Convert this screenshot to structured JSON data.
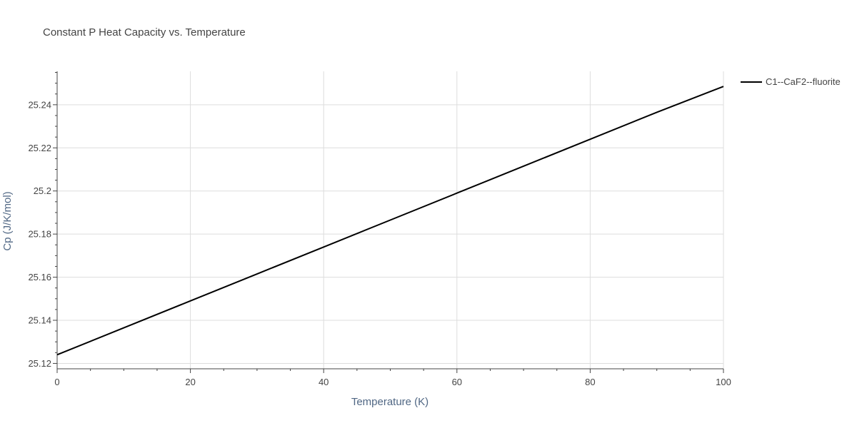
{
  "chart_data": {
    "type": "line",
    "title": "Constant P Heat Capacity vs. Temperature",
    "xlabel": "Temperature (K)",
    "ylabel": "Cp (J/K/mol)",
    "xlim": [
      0,
      100
    ],
    "ylim": [
      25.1175,
      25.2555
    ],
    "x_ticks": [
      0,
      20,
      40,
      60,
      80,
      100
    ],
    "x_tick_labels": [
      "0",
      "20",
      "40",
      "60",
      "80",
      "100"
    ],
    "y_ticks": [
      25.12,
      25.14,
      25.16,
      25.18,
      25.2,
      25.22,
      25.24
    ],
    "y_tick_labels": [
      "25.12",
      "25.14",
      "25.16",
      "25.18",
      "25.2",
      "25.22",
      "25.24"
    ],
    "grid": true,
    "legend_position": "top-right",
    "series": [
      {
        "name": "C1--CaF2--fluorite",
        "color": "#000000",
        "x": [
          0,
          10,
          20,
          30,
          40,
          50,
          60,
          70,
          80,
          90,
          100
        ],
        "y": [
          25.124,
          25.1365,
          25.149,
          25.1615,
          25.174,
          25.1865,
          25.199,
          25.2115,
          25.224,
          25.2365,
          25.2485
        ]
      }
    ]
  }
}
